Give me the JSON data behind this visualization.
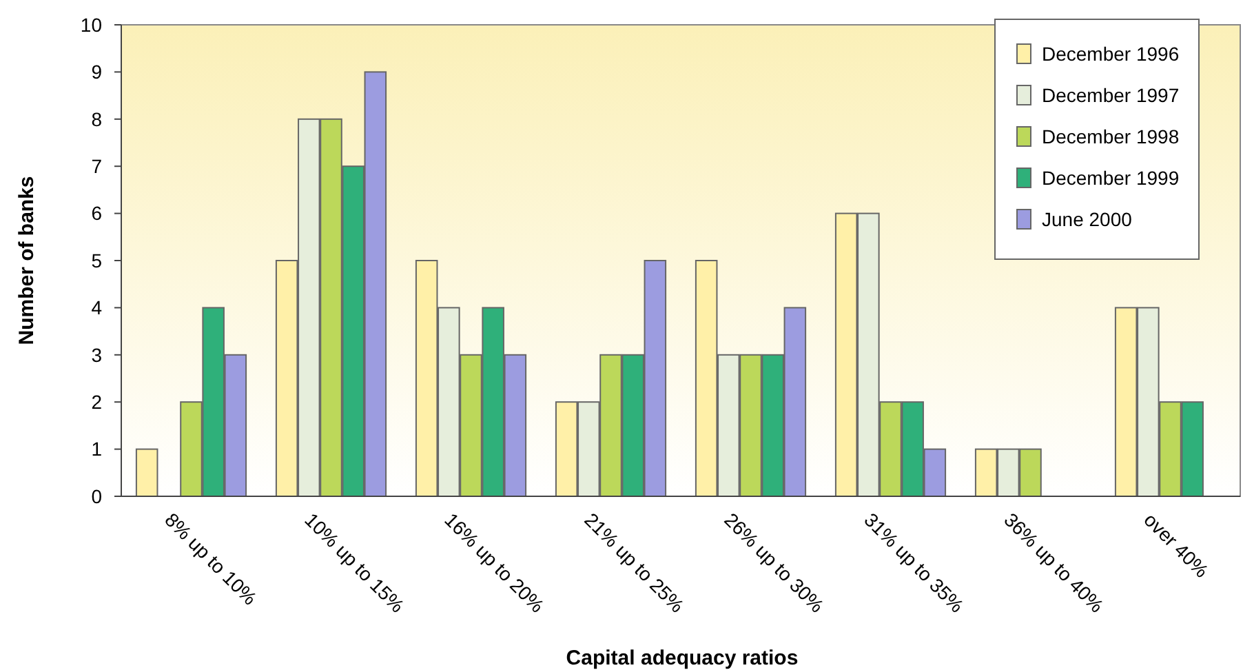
{
  "chart_data": {
    "type": "bar",
    "xlabel": "Capital adequacy ratios",
    "ylabel": "Number of banks",
    "categories": [
      "8% up to 10%",
      "10% up to 15%",
      "16% up to 20%",
      "21% up to 25%",
      "26% up to 30%",
      "31% up to 35%",
      "36% up to 40%",
      "over 40%"
    ],
    "series": [
      {
        "name": "December 1996",
        "color": "#fff0a8",
        "values": [
          1,
          5,
          5,
          2,
          5,
          6,
          1,
          4
        ]
      },
      {
        "name": "December 1997",
        "color": "#e6eedc",
        "values": [
          0,
          8,
          4,
          2,
          3,
          6,
          1,
          4
        ]
      },
      {
        "name": "December 1998",
        "color": "#bcd85a",
        "values": [
          2,
          8,
          3,
          3,
          3,
          2,
          1,
          2
        ]
      },
      {
        "name": "December 1999",
        "color": "#2fb07a",
        "values": [
          4,
          7,
          4,
          3,
          3,
          2,
          0,
          2
        ]
      },
      {
        "name": "June 2000",
        "color": "#9c9ce0",
        "values": [
          3,
          9,
          3,
          5,
          4,
          1,
          0,
          0
        ]
      }
    ],
    "ylim": [
      0,
      10
    ],
    "yticks": [
      0,
      1,
      2,
      3,
      4,
      5,
      6,
      7,
      8,
      9,
      10
    ],
    "grid": false,
    "legend": "top right"
  }
}
